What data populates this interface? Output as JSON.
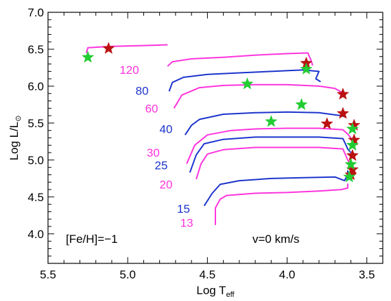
{
  "chart_data": {
    "type": "line",
    "title": "",
    "xlabel": "Log T",
    "xlabel_sub": "eff",
    "ylabel": "Log L/L",
    "ylabel_sub": "⊙",
    "xlim": [
      5.5,
      3.4
    ],
    "ylim": [
      3.6,
      7.0
    ],
    "x_reversed": true,
    "x_ticks": [
      "5.5",
      "5.0",
      "4.5",
      "4.0",
      "3.5"
    ],
    "y_ticks": [
      "4.0",
      "4.5",
      "5.0",
      "5.5",
      "6.0",
      "6.5",
      "7.0"
    ],
    "grid": false,
    "legend": "none",
    "colors": {
      "magenta": "#ff33dd",
      "blue": "#1a33cc",
      "red_star": "#bb1111",
      "green_star": "#22cc33"
    },
    "annotations": {
      "metallicity": "[Fe/H]=−1",
      "rotation": "v=0 km/s"
    },
    "series": [
      {
        "label": "13",
        "color": "magenta",
        "label_pos": [
          4.63,
          4.15
        ],
        "points": [
          [
            4.45,
            4.12
          ],
          [
            4.45,
            4.35
          ],
          [
            4.42,
            4.47
          ],
          [
            4.38,
            4.52
          ],
          [
            4.2,
            4.55
          ],
          [
            4.0,
            4.56
          ],
          [
            3.8,
            4.58
          ],
          [
            3.66,
            4.6
          ],
          [
            3.62,
            4.62
          ],
          [
            3.62,
            4.68
          ]
        ]
      },
      {
        "label": "15",
        "color": "blue",
        "label_pos": [
          4.65,
          4.34
        ],
        "points": [
          [
            4.52,
            4.38
          ],
          [
            4.47,
            4.55
          ],
          [
            4.42,
            4.67
          ],
          [
            4.3,
            4.72
          ],
          [
            4.1,
            4.75
          ],
          [
            3.9,
            4.76
          ],
          [
            3.7,
            4.77
          ],
          [
            3.64,
            4.72
          ],
          [
            3.62,
            4.8
          ],
          [
            3.62,
            4.86
          ]
        ]
      },
      {
        "label": "20",
        "color": "magenta",
        "label_pos": [
          4.76,
          4.67
        ],
        "points": [
          [
            4.57,
            4.74
          ],
          [
            4.54,
            4.95
          ],
          [
            4.5,
            5.08
          ],
          [
            4.4,
            5.14
          ],
          [
            4.2,
            5.17
          ],
          [
            4.0,
            5.17
          ],
          [
            3.8,
            5.17
          ],
          [
            3.65,
            5.15
          ],
          [
            3.62,
            5.0
          ],
          [
            3.61,
            4.97
          ]
        ]
      },
      {
        "label": "25",
        "color": "blue",
        "label_pos": [
          4.79,
          4.93
        ],
        "points": [
          [
            4.61,
            4.83
          ],
          [
            4.57,
            5.07
          ],
          [
            4.52,
            5.22
          ],
          [
            4.4,
            5.28
          ],
          [
            4.2,
            5.31
          ],
          [
            4.0,
            5.31
          ],
          [
            3.8,
            5.31
          ],
          [
            3.65,
            5.29
          ],
          [
            3.62,
            5.15
          ],
          [
            3.6,
            5.1
          ]
        ]
      },
      {
        "label": "30",
        "color": "magenta",
        "label_pos": [
          4.84,
          5.1
        ],
        "points": [
          [
            4.63,
            4.95
          ],
          [
            4.58,
            5.2
          ],
          [
            4.5,
            5.34
          ],
          [
            4.35,
            5.4
          ],
          [
            4.2,
            5.42
          ],
          [
            4.0,
            5.43
          ],
          [
            3.8,
            5.43
          ],
          [
            3.65,
            5.41
          ],
          [
            3.62,
            5.35
          ],
          [
            3.6,
            5.3
          ]
        ]
      },
      {
        "label": "40",
        "color": "blue",
        "label_pos": [
          4.76,
          5.42
        ],
        "points": [
          [
            4.64,
            5.34
          ],
          [
            4.6,
            5.47
          ],
          [
            4.55,
            5.55
          ],
          [
            4.4,
            5.62
          ],
          [
            4.2,
            5.64
          ],
          [
            4.0,
            5.65
          ],
          [
            3.8,
            5.64
          ],
          [
            3.66,
            5.6
          ],
          [
            3.63,
            5.58
          ]
        ]
      },
      {
        "label": "60",
        "color": "magenta",
        "label_pos": [
          4.85,
          5.7
        ],
        "points": [
          [
            4.71,
            5.7
          ],
          [
            4.66,
            5.88
          ],
          [
            4.55,
            5.98
          ],
          [
            4.4,
            6.01
          ],
          [
            4.2,
            6.02
          ],
          [
            4.0,
            6.02
          ],
          [
            3.8,
            6.0
          ],
          [
            3.7,
            5.97
          ],
          [
            3.66,
            5.92
          ]
        ]
      },
      {
        "label": "80",
        "color": "blue",
        "label_pos": [
          4.91,
          5.94
        ],
        "points": [
          [
            4.74,
            5.93
          ],
          [
            4.72,
            6.05
          ],
          [
            4.65,
            6.12
          ],
          [
            4.5,
            6.16
          ],
          [
            4.3,
            6.18
          ],
          [
            4.1,
            6.2
          ],
          [
            3.9,
            6.22
          ],
          [
            3.8,
            6.2
          ],
          [
            3.82,
            6.1
          ],
          [
            3.79,
            6.06
          ]
        ]
      },
      {
        "label": "120",
        "color": "magenta",
        "label_pos": [
          4.99,
          6.22
        ],
        "points": [
          [
            4.75,
            6.27
          ],
          [
            4.72,
            6.33
          ],
          [
            4.6,
            6.37
          ],
          [
            4.4,
            6.39
          ],
          [
            4.2,
            6.42
          ],
          [
            4.0,
            6.44
          ],
          [
            3.87,
            6.45
          ],
          [
            3.85,
            6.35
          ],
          [
            3.84,
            6.28
          ]
        ]
      },
      {
        "label": "",
        "color": "magenta",
        "label_pos": null,
        "points": [
          [
            5.26,
            6.45
          ],
          [
            5.25,
            6.52
          ],
          [
            5.1,
            6.54
          ],
          [
            4.9,
            6.55
          ],
          [
            4.75,
            6.56
          ]
        ]
      }
    ],
    "stars_red": [
      [
        5.12,
        6.51
      ],
      [
        3.88,
        6.31
      ],
      [
        3.65,
        5.89
      ],
      [
        3.65,
        5.63
      ],
      [
        3.75,
        5.49
      ],
      [
        3.58,
        5.47
      ],
      [
        3.58,
        5.27
      ],
      [
        3.59,
        5.06
      ],
      [
        3.59,
        4.87
      ],
      [
        3.6,
        4.8
      ]
    ],
    "stars_green": [
      [
        5.25,
        6.39
      ],
      [
        3.88,
        6.23
      ],
      [
        4.25,
        6.03
      ],
      [
        3.91,
        5.75
      ],
      [
        4.1,
        5.52
      ],
      [
        3.59,
        5.42
      ],
      [
        3.59,
        5.2
      ],
      [
        3.6,
        4.94
      ],
      [
        3.61,
        4.77
      ]
    ]
  }
}
